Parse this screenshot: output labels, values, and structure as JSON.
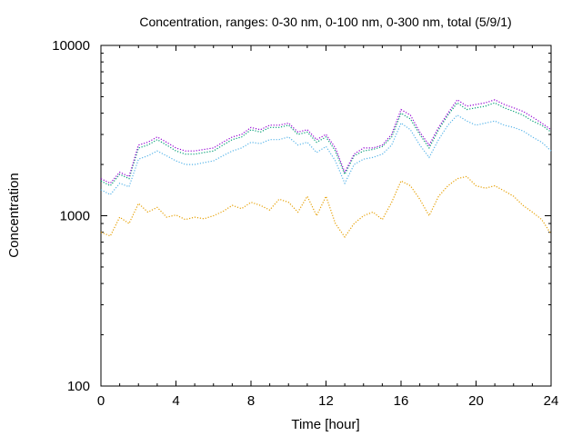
{
  "chart_data": {
    "type": "line",
    "title": "Concentration, ranges: 0-30 nm, 0-100 nm, 0-300 nm, total (5/9/1)",
    "xlabel": "Time [hour]",
    "ylabel": "Concentration",
    "xlim": [
      0,
      24
    ],
    "ylim": [
      100,
      10000
    ],
    "yscale": "log",
    "grid": false,
    "line_style": "dotted",
    "xticks": [
      0,
      4,
      8,
      12,
      16,
      20,
      24
    ],
    "xtick_labels": [
      "0",
      "4",
      "8",
      "12",
      "16",
      "20",
      "24"
    ],
    "yticks": [
      100,
      1000,
      10000
    ],
    "ytick_labels": [
      "100",
      "1000",
      "10000"
    ],
    "x": [
      0,
      0.5,
      1,
      1.5,
      2,
      2.5,
      3,
      3.5,
      4,
      4.5,
      5,
      5.5,
      6,
      6.5,
      7,
      7.5,
      8,
      8.5,
      9,
      9.5,
      10,
      10.5,
      11,
      11.5,
      12,
      12.5,
      13,
      13.5,
      14,
      14.5,
      15,
      15.5,
      16,
      16.5,
      17,
      17.5,
      18,
      18.5,
      19,
      19.5,
      20,
      20.5,
      21,
      21.5,
      22,
      22.5,
      23,
      23.5,
      24
    ],
    "series": [
      {
        "color": "#e69f00",
        "values": [
          800,
          760,
          980,
          900,
          1180,
          1050,
          1120,
          980,
          1010,
          950,
          980,
          960,
          1000,
          1060,
          1150,
          1100,
          1200,
          1150,
          1080,
          1250,
          1200,
          1050,
          1300,
          1000,
          1300,
          900,
          750,
          900,
          1000,
          1050,
          950,
          1200,
          1600,
          1500,
          1250,
          1000,
          1300,
          1500,
          1650,
          1700,
          1500,
          1450,
          1500,
          1400,
          1300,
          1150,
          1050,
          950,
          780
        ]
      },
      {
        "color": "#56b4e9",
        "values": [
          1420,
          1330,
          1550,
          1480,
          2150,
          2250,
          2400,
          2250,
          2100,
          2000,
          2000,
          2050,
          2100,
          2250,
          2400,
          2500,
          2700,
          2650,
          2800,
          2800,
          2900,
          2600,
          2700,
          2350,
          2550,
          2100,
          1550,
          2000,
          2150,
          2200,
          2300,
          2600,
          3500,
          3200,
          2600,
          2200,
          2800,
          3400,
          3900,
          3600,
          3400,
          3500,
          3600,
          3400,
          3300,
          3150,
          2900,
          2700,
          2400
        ]
      },
      {
        "color": "#009e73",
        "values": [
          1600,
          1500,
          1750,
          1650,
          2500,
          2600,
          2800,
          2600,
          2400,
          2300,
          2300,
          2350,
          2400,
          2600,
          2800,
          2900,
          3200,
          3100,
          3300,
          3300,
          3400,
          3000,
          3100,
          2700,
          2900,
          2400,
          1750,
          2250,
          2400,
          2450,
          2550,
          2900,
          4000,
          3700,
          3000,
          2500,
          3200,
          3900,
          4600,
          4200,
          4300,
          4400,
          4600,
          4300,
          4100,
          3900,
          3600,
          3400,
          3100
        ]
      },
      {
        "color": "#9400d3",
        "values": [
          1650,
          1550,
          1800,
          1700,
          2600,
          2700,
          2900,
          2700,
          2500,
          2400,
          2400,
          2450,
          2500,
          2700,
          2900,
          3000,
          3300,
          3200,
          3400,
          3400,
          3500,
          3100,
          3200,
          2800,
          3000,
          2500,
          1800,
          2300,
          2500,
          2500,
          2600,
          3000,
          4200,
          3900,
          3100,
          2600,
          3300,
          4000,
          4800,
          4400,
          4500,
          4600,
          4800,
          4500,
          4300,
          4100,
          3800,
          3500,
          3200
        ]
      }
    ]
  }
}
